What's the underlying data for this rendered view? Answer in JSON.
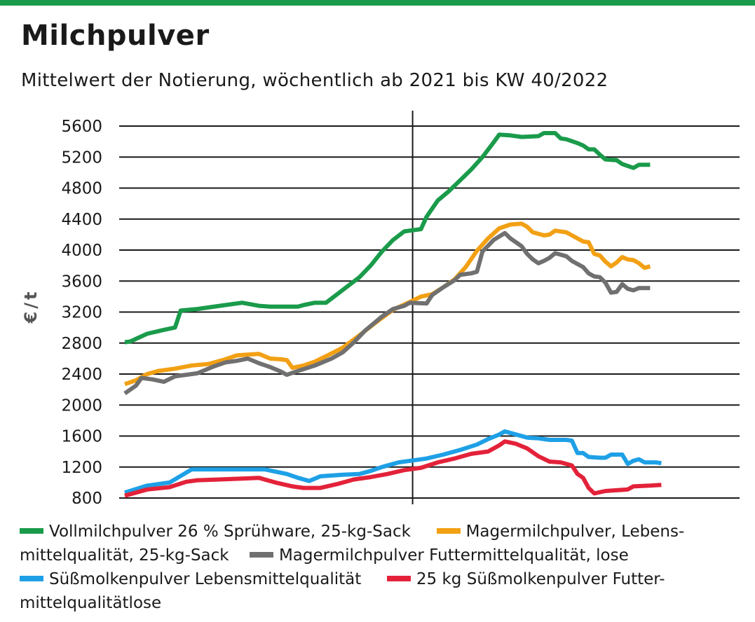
{
  "header": {
    "title": "Milchpulver",
    "subtitle": "Mittelwert der Notierung, wöchentlich ab 2021 bis KW 40/2022"
  },
  "colors": {
    "topbar": "#1a9b4b"
  },
  "chart_data": {
    "type": "line",
    "ylabel": "€/t",
    "ylim": [
      800,
      5600
    ],
    "yticks": [
      "5600",
      "5200",
      "4800",
      "4400",
      "4000",
      "3600",
      "3200",
      "2800",
      "2400",
      "2000",
      "1600",
      "1200",
      "800"
    ],
    "grid": true,
    "x_start_week": 1,
    "x_unit": "week (2021 weeks 1–52, then 2022 weeks 1–40)",
    "year_divider_after_week": 52,
    "legend": {
      "line1a": "Vollmilchpulver 26 % Sprühware, 25-kg-Sack",
      "line1b": "Magermilchpulver, Lebens-",
      "line2a": "mittelqualität, 25-kg-Sack",
      "line2b": "Magermilchpulver Futtermittelqualität, lose",
      "line3a": "Süßmolkenpulver Lebensmittelqualität",
      "line3b": "25 kg Süßmolkenpulver Futter-",
      "line4a": "mittelqualitätlose"
    },
    "series": [
      {
        "name": "Vollmilchpulver 26 % Sprühware, 25-kg-Sack",
        "color": "#1a9b4b",
        "points": [
          [
            1,
            2810
          ],
          [
            2,
            2820
          ],
          [
            5,
            2920
          ],
          [
            8,
            2970
          ],
          [
            10,
            3000
          ],
          [
            11,
            3220
          ],
          [
            14,
            3240
          ],
          [
            18,
            3280
          ],
          [
            22,
            3320
          ],
          [
            25,
            3280
          ],
          [
            27,
            3270
          ],
          [
            32,
            3270
          ],
          [
            33,
            3290
          ],
          [
            35,
            3320
          ],
          [
            37,
            3320
          ],
          [
            39,
            3430
          ],
          [
            41,
            3540
          ],
          [
            43,
            3650
          ],
          [
            45,
            3800
          ],
          [
            47,
            3980
          ],
          [
            49,
            4130
          ],
          [
            51,
            4240
          ],
          [
            54,
            4270
          ],
          [
            55,
            4430
          ],
          [
            57,
            4640
          ],
          [
            59,
            4760
          ],
          [
            61,
            4900
          ],
          [
            63,
            5040
          ],
          [
            65,
            5200
          ],
          [
            67,
            5390
          ],
          [
            68,
            5490
          ],
          [
            70,
            5480
          ],
          [
            72,
            5460
          ],
          [
            75,
            5470
          ],
          [
            76,
            5510
          ],
          [
            78,
            5510
          ],
          [
            79,
            5440
          ],
          [
            80,
            5430
          ],
          [
            82,
            5380
          ],
          [
            83,
            5350
          ],
          [
            84,
            5300
          ],
          [
            85,
            5300
          ],
          [
            86,
            5230
          ],
          [
            87,
            5170
          ],
          [
            89,
            5160
          ],
          [
            90,
            5110
          ],
          [
            92,
            5060
          ],
          [
            93,
            5100
          ],
          [
            95,
            5100
          ]
        ]
      },
      {
        "name": "Magermilchpulver, Lebensmittelqualität, 25-kg-Sack",
        "color": "#f2a014",
        "points": [
          [
            1,
            2270
          ],
          [
            3,
            2320
          ],
          [
            5,
            2400
          ],
          [
            7,
            2440
          ],
          [
            10,
            2470
          ],
          [
            13,
            2510
          ],
          [
            16,
            2530
          ],
          [
            19,
            2590
          ],
          [
            21,
            2640
          ],
          [
            23,
            2650
          ],
          [
            25,
            2660
          ],
          [
            27,
            2600
          ],
          [
            29,
            2590
          ],
          [
            30,
            2580
          ],
          [
            31,
            2480
          ],
          [
            33,
            2510
          ],
          [
            35,
            2560
          ],
          [
            37,
            2630
          ],
          [
            40,
            2740
          ],
          [
            43,
            2900
          ],
          [
            46,
            3070
          ],
          [
            49,
            3230
          ],
          [
            52,
            3330
          ],
          [
            54,
            3400
          ],
          [
            56,
            3430
          ],
          [
            58,
            3520
          ],
          [
            60,
            3620
          ],
          [
            62,
            3780
          ],
          [
            64,
            3990
          ],
          [
            66,
            4150
          ],
          [
            68,
            4280
          ],
          [
            70,
            4330
          ],
          [
            72,
            4340
          ],
          [
            73,
            4300
          ],
          [
            74,
            4230
          ],
          [
            76,
            4190
          ],
          [
            77,
            4200
          ],
          [
            78,
            4250
          ],
          [
            80,
            4230
          ],
          [
            82,
            4150
          ],
          [
            83,
            4110
          ],
          [
            84,
            4100
          ],
          [
            85,
            3950
          ],
          [
            86,
            3930
          ],
          [
            87,
            3850
          ],
          [
            88,
            3790
          ],
          [
            89,
            3840
          ],
          [
            90,
            3910
          ],
          [
            91,
            3880
          ],
          [
            92,
            3870
          ],
          [
            93,
            3830
          ],
          [
            94,
            3770
          ],
          [
            95,
            3790
          ]
        ]
      },
      {
        "name": "Magermilchpulver Futtermittelqualität, lose",
        "color": "#707070",
        "points": [
          [
            1,
            2150
          ],
          [
            3,
            2250
          ],
          [
            4,
            2350
          ],
          [
            6,
            2330
          ],
          [
            8,
            2300
          ],
          [
            10,
            2370
          ],
          [
            14,
            2410
          ],
          [
            17,
            2500
          ],
          [
            19,
            2550
          ],
          [
            21,
            2570
          ],
          [
            23,
            2600
          ],
          [
            25,
            2540
          ],
          [
            27,
            2490
          ],
          [
            29,
            2430
          ],
          [
            30,
            2390
          ],
          [
            32,
            2440
          ],
          [
            35,
            2510
          ],
          [
            38,
            2600
          ],
          [
            40,
            2680
          ],
          [
            42,
            2810
          ],
          [
            44,
            2960
          ],
          [
            47,
            3140
          ],
          [
            49,
            3240
          ],
          [
            51,
            3280
          ],
          [
            52,
            3320
          ],
          [
            55,
            3310
          ],
          [
            56,
            3420
          ],
          [
            58,
            3520
          ],
          [
            60,
            3610
          ],
          [
            61,
            3680
          ],
          [
            63,
            3700
          ],
          [
            64,
            3720
          ],
          [
            65,
            3980
          ],
          [
            67,
            4130
          ],
          [
            69,
            4220
          ],
          [
            70,
            4150
          ],
          [
            72,
            4050
          ],
          [
            73,
            3950
          ],
          [
            74,
            3880
          ],
          [
            75,
            3830
          ],
          [
            76,
            3860
          ],
          [
            77,
            3900
          ],
          [
            78,
            3960
          ],
          [
            80,
            3920
          ],
          [
            81,
            3860
          ],
          [
            83,
            3780
          ],
          [
            84,
            3700
          ],
          [
            85,
            3660
          ],
          [
            86,
            3650
          ],
          [
            87,
            3580
          ],
          [
            88,
            3450
          ],
          [
            89,
            3460
          ],
          [
            90,
            3560
          ],
          [
            91,
            3500
          ],
          [
            92,
            3480
          ],
          [
            93,
            3510
          ],
          [
            95,
            3510
          ]
        ]
      },
      {
        "name": "Süßmolkenpulver Lebensmittelqualität",
        "color": "#1ea0e6",
        "points": [
          [
            1,
            870
          ],
          [
            5,
            960
          ],
          [
            9,
            1000
          ],
          [
            13,
            1170
          ],
          [
            16,
            1170
          ],
          [
            18,
            1170
          ],
          [
            22,
            1170
          ],
          [
            26,
            1170
          ],
          [
            30,
            1110
          ],
          [
            32,
            1060
          ],
          [
            34,
            1020
          ],
          [
            36,
            1080
          ],
          [
            38,
            1090
          ],
          [
            40,
            1100
          ],
          [
            43,
            1110
          ],
          [
            45,
            1150
          ],
          [
            47,
            1200
          ],
          [
            50,
            1260
          ],
          [
            53,
            1290
          ],
          [
            55,
            1310
          ],
          [
            58,
            1360
          ],
          [
            61,
            1420
          ],
          [
            64,
            1490
          ],
          [
            66,
            1560
          ],
          [
            68,
            1620
          ],
          [
            69,
            1660
          ],
          [
            71,
            1620
          ],
          [
            73,
            1580
          ],
          [
            75,
            1570
          ],
          [
            77,
            1550
          ],
          [
            80,
            1550
          ],
          [
            81,
            1540
          ],
          [
            82,
            1380
          ],
          [
            83,
            1380
          ],
          [
            84,
            1330
          ],
          [
            86,
            1320
          ],
          [
            87,
            1320
          ],
          [
            88,
            1360
          ],
          [
            90,
            1360
          ],
          [
            91,
            1240
          ],
          [
            92,
            1280
          ],
          [
            93,
            1300
          ],
          [
            94,
            1260
          ],
          [
            96,
            1260
          ],
          [
            97,
            1250
          ]
        ]
      },
      {
        "name": "25 kg Süßmolkenpulver Futtermittelqualitätlose",
        "color": "#e3223a",
        "points": [
          [
            1,
            830
          ],
          [
            5,
            910
          ],
          [
            9,
            940
          ],
          [
            12,
            1010
          ],
          [
            14,
            1030
          ],
          [
            18,
            1040
          ],
          [
            22,
            1050
          ],
          [
            25,
            1060
          ],
          [
            28,
            1000
          ],
          [
            31,
            950
          ],
          [
            33,
            930
          ],
          [
            36,
            930
          ],
          [
            39,
            980
          ],
          [
            42,
            1040
          ],
          [
            45,
            1070
          ],
          [
            48,
            1110
          ],
          [
            51,
            1160
          ],
          [
            54,
            1190
          ],
          [
            57,
            1260
          ],
          [
            60,
            1310
          ],
          [
            63,
            1370
          ],
          [
            66,
            1400
          ],
          [
            68,
            1480
          ],
          [
            69,
            1530
          ],
          [
            71,
            1500
          ],
          [
            73,
            1440
          ],
          [
            75,
            1340
          ],
          [
            77,
            1270
          ],
          [
            79,
            1260
          ],
          [
            81,
            1220
          ],
          [
            82,
            1110
          ],
          [
            83,
            1060
          ],
          [
            84,
            930
          ],
          [
            85,
            860
          ],
          [
            87,
            890
          ],
          [
            89,
            900
          ],
          [
            91,
            910
          ],
          [
            92,
            950
          ],
          [
            95,
            960
          ],
          [
            97,
            970
          ]
        ]
      }
    ]
  }
}
